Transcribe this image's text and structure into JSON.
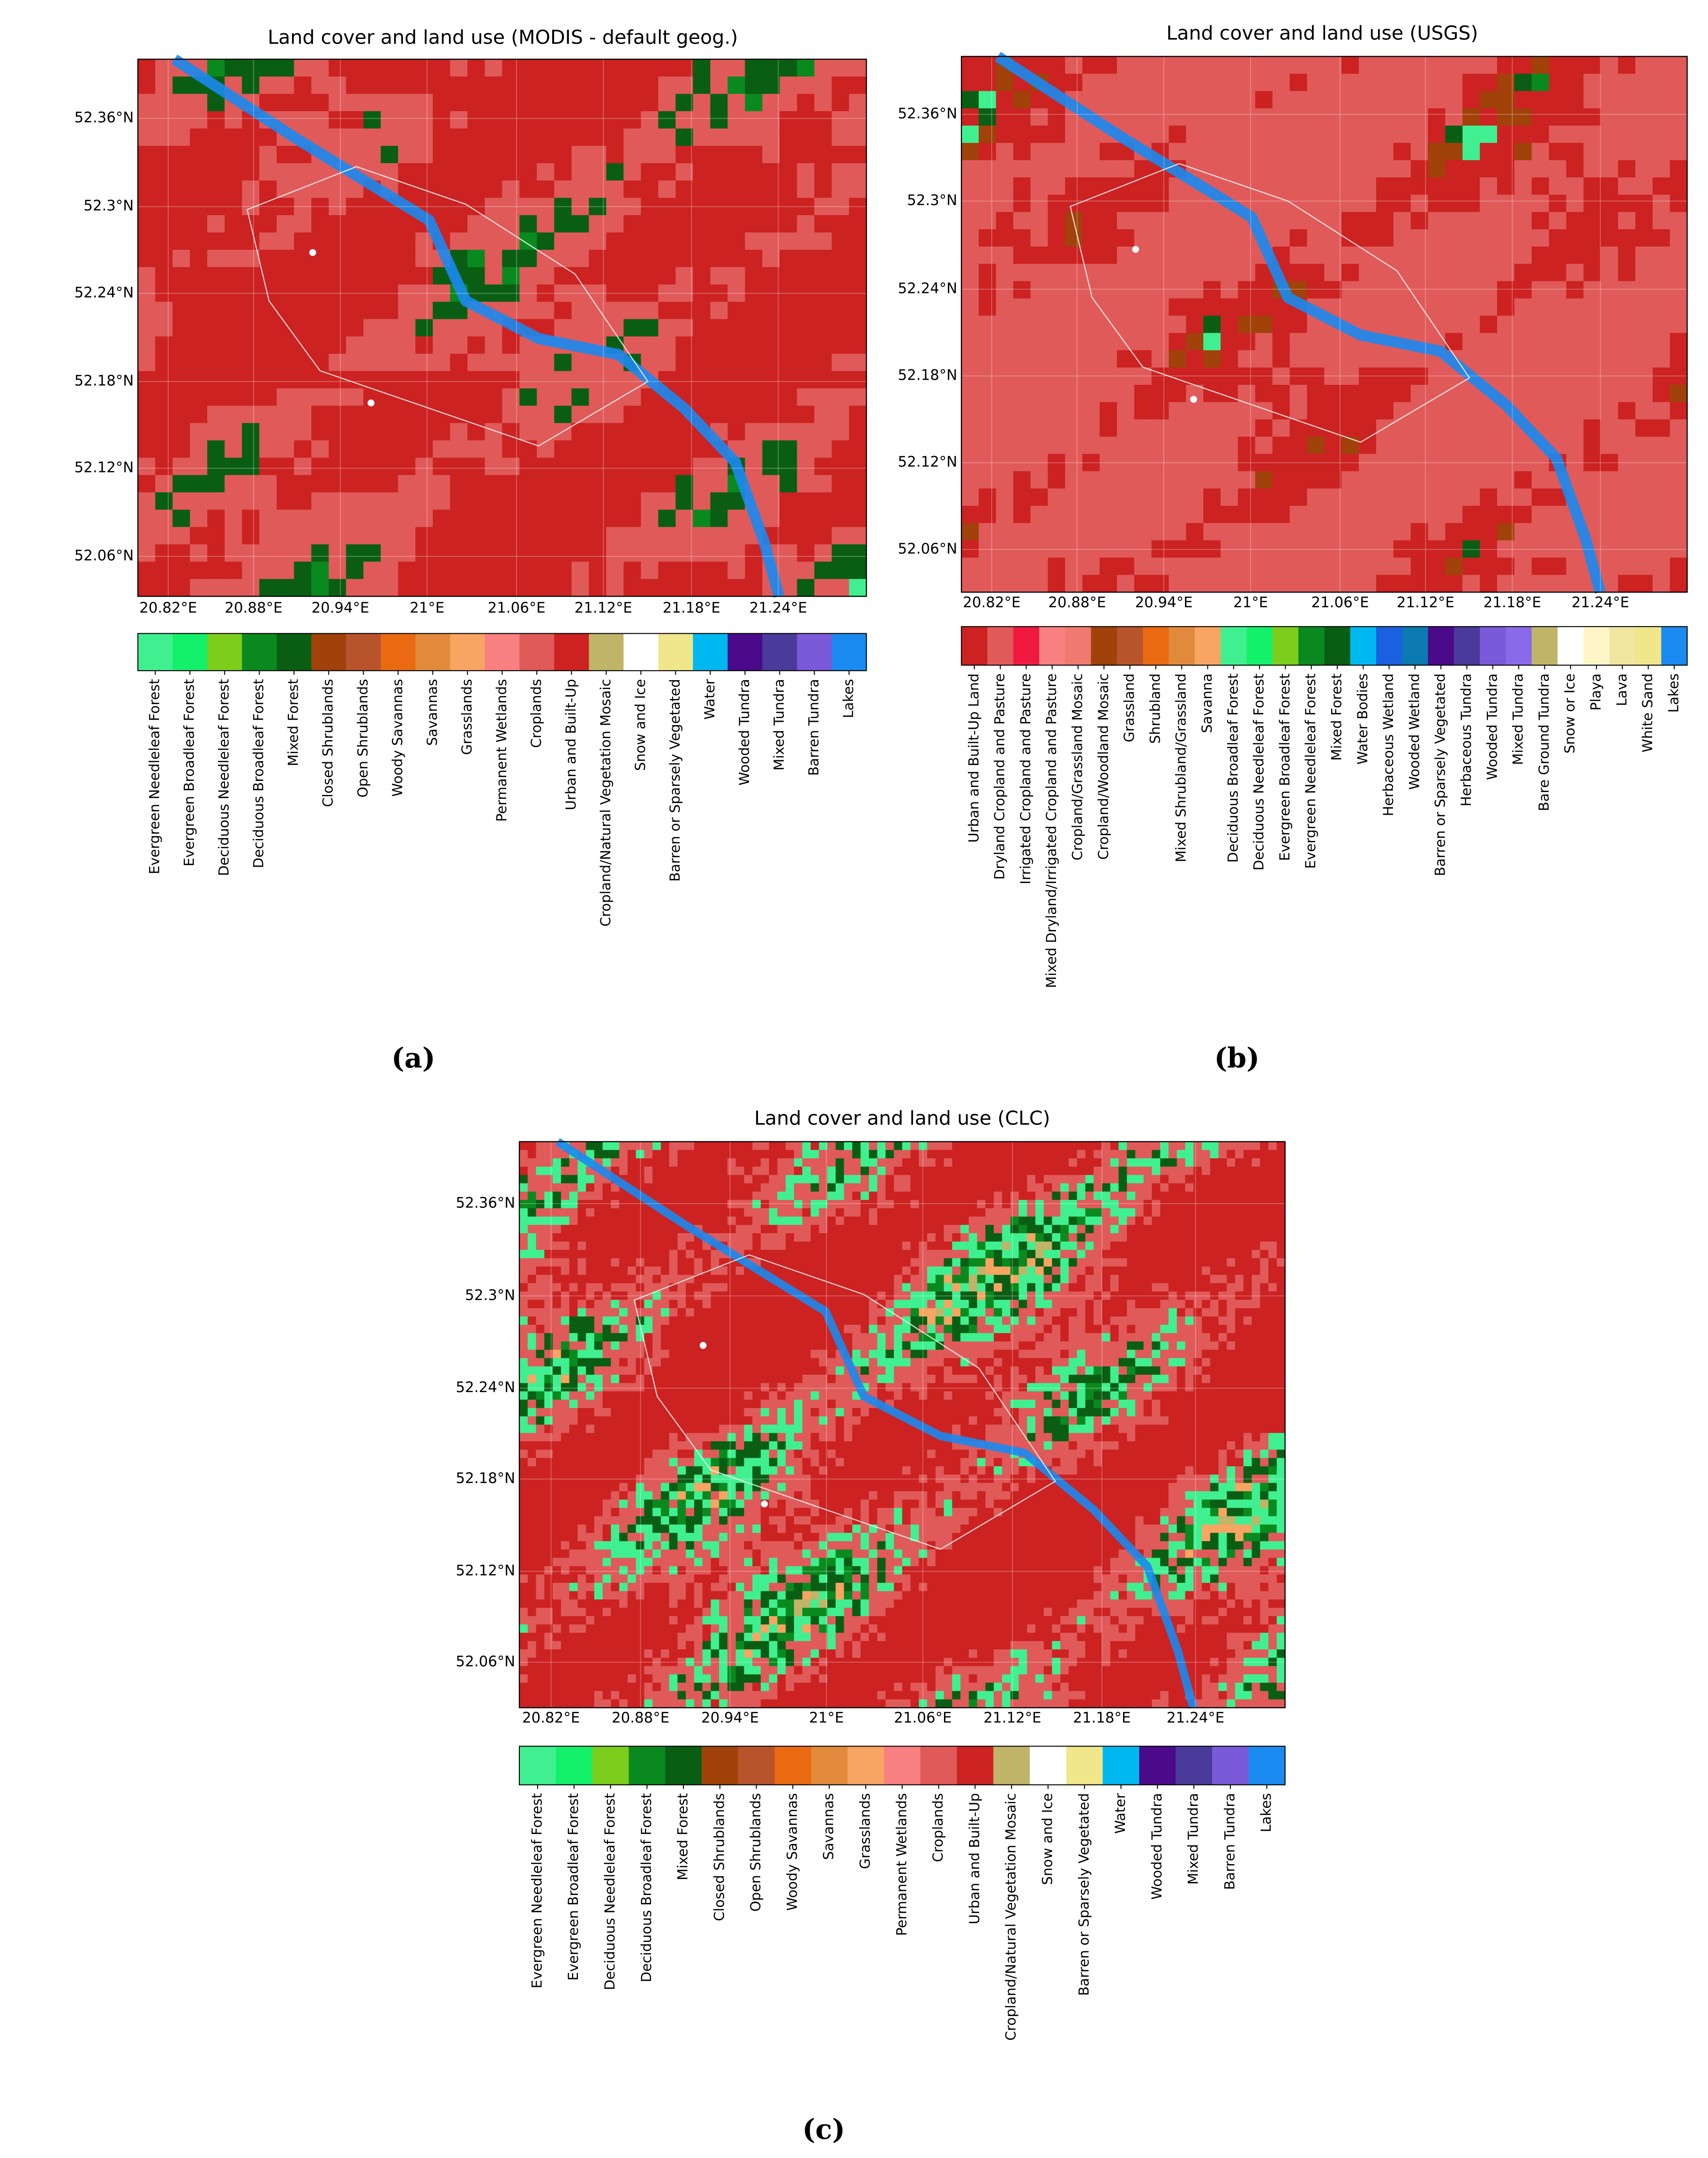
{
  "panels": [
    {
      "label": "(a)",
      "title": "Land cover and land use (MODIS - default geog.)",
      "lat_ticks": [
        "52.36°N",
        "52.3°N",
        "52.24°N",
        "52.18°N",
        "52.12°N",
        "52.06°N"
      ],
      "lon_ticks": [
        "20.82°E",
        "20.88°E",
        "20.94°E",
        "21°E",
        "21.06°E",
        "21.12°E",
        "21.18°E",
        "21.24°E"
      ],
      "legend": [
        {
          "name": "Evergreen Needleleaf Forest",
          "color": "#40f090"
        },
        {
          "name": "Evergreen Broadleaf Forest",
          "color": "#14f06a"
        },
        {
          "name": "Deciduous Needleleaf Forest",
          "color": "#7ccd1c"
        },
        {
          "name": "Deciduous Broadleaf Forest",
          "color": "#0a8a1e"
        },
        {
          "name": "Mixed Forest",
          "color": "#0a5e14"
        },
        {
          "name": "Closed Shrublands",
          "color": "#a0420a"
        },
        {
          "name": "Open Shrublands",
          "color": "#b8542c"
        },
        {
          "name": "Woody Savannas",
          "color": "#ea6a12"
        },
        {
          "name": "Savannas",
          "color": "#e28a3c"
        },
        {
          "name": "Grasslands",
          "color": "#f8a462"
        },
        {
          "name": "Permanent Wetlands",
          "color": "#f88080"
        },
        {
          "name": "Croplands",
          "color": "#e05a5a"
        },
        {
          "name": "Urban and Built-Up",
          "color": "#cc2222"
        },
        {
          "name": "Cropland/Natural Vegetation Mosaic",
          "color": "#c0b468"
        },
        {
          "name": "Snow and Ice",
          "color": "#ffffff"
        },
        {
          "name": "Barren or Sparsely Vegetated",
          "color": "#f0e68a"
        },
        {
          "name": "Water",
          "color": "#00b8f0"
        },
        {
          "name": "Wooded Tundra",
          "color": "#4a0a8a"
        },
        {
          "name": "Mixed Tundra",
          "color": "#4a3a9a"
        },
        {
          "name": "Barren Tundra",
          "color": "#7a5ad8"
        },
        {
          "name": "Lakes",
          "color": "#1a8af0"
        }
      ]
    },
    {
      "label": "(b)",
      "title": "Land cover and land use (USGS)",
      "lat_ticks": [
        "52.36°N",
        "52.3°N",
        "52.24°N",
        "52.18°N",
        "52.12°N",
        "52.06°N"
      ],
      "lon_ticks": [
        "20.82°E",
        "20.88°E",
        "20.94°E",
        "21°E",
        "21.06°E",
        "21.12°E",
        "21.18°E",
        "21.24°E"
      ],
      "legend": [
        {
          "name": "Urban and Built-Up Land",
          "color": "#cc2222"
        },
        {
          "name": "Dryland Cropland and Pasture",
          "color": "#e05a5a"
        },
        {
          "name": "Irrigated Cropland and Pasture",
          "color": "#f01a40"
        },
        {
          "name": "Mixed Dryland/Irrigated Cropland and Pasture",
          "color": "#f88080"
        },
        {
          "name": "Cropland/Grassland Mosaic",
          "color": "#f07a70"
        },
        {
          "name": "Cropland/Woodland Mosaic",
          "color": "#a0420a"
        },
        {
          "name": "Grassland",
          "color": "#b8542c"
        },
        {
          "name": "Shrubland",
          "color": "#ea6a12"
        },
        {
          "name": "Mixed Shrubland/Grassland",
          "color": "#e28a3c"
        },
        {
          "name": "Savanna",
          "color": "#f8a462"
        },
        {
          "name": "Deciduous Broadleaf Forest",
          "color": "#40f090"
        },
        {
          "name": "Deciduous Needleleaf Forest",
          "color": "#14f06a"
        },
        {
          "name": "Evergreen Broadleaf Forest",
          "color": "#7ccd1c"
        },
        {
          "name": "Evergreen Needleleaf Forest",
          "color": "#0a8a1e"
        },
        {
          "name": "Mixed Forest",
          "color": "#0a5e14"
        },
        {
          "name": "Water Bodies",
          "color": "#00b8f0"
        },
        {
          "name": "Herbaceous Wetland",
          "color": "#1a60e0"
        },
        {
          "name": "Wooded Wetland",
          "color": "#0a7ab0"
        },
        {
          "name": "Barren or Sparsely Vegetated",
          "color": "#4a0a8a"
        },
        {
          "name": "Herbaceous Tundra",
          "color": "#4a3a9a"
        },
        {
          "name": "Wooded Tundra",
          "color": "#7a5ad8"
        },
        {
          "name": "Mixed Tundra",
          "color": "#8a6ae8"
        },
        {
          "name": "Bare Ground Tundra",
          "color": "#c0b468"
        },
        {
          "name": "Snow or Ice",
          "color": "#ffffff"
        },
        {
          "name": "Playa",
          "color": "#fff6c8"
        },
        {
          "name": "Lava",
          "color": "#f0e6a0"
        },
        {
          "name": "White Sand",
          "color": "#f0e68a"
        },
        {
          "name": "Lakes",
          "color": "#1a8af0"
        }
      ]
    },
    {
      "label": "(c)",
      "title": "Land cover and land use (CLC)",
      "lat_ticks": [
        "52.36°N",
        "52.3°N",
        "52.24°N",
        "52.18°N",
        "52.12°N",
        "52.06°N"
      ],
      "lon_ticks": [
        "20.82°E",
        "20.88°E",
        "20.94°E",
        "21°E",
        "21.06°E",
        "21.12°E",
        "21.18°E",
        "21.24°E"
      ],
      "legend": [
        {
          "name": "Evergreen Needleleaf Forest",
          "color": "#40f090"
        },
        {
          "name": "Evergreen Broadleaf Forest",
          "color": "#14f06a"
        },
        {
          "name": "Deciduous Needleleaf Forest",
          "color": "#7ccd1c"
        },
        {
          "name": "Deciduous Broadleaf Forest",
          "color": "#0a8a1e"
        },
        {
          "name": "Mixed Forest",
          "color": "#0a5e14"
        },
        {
          "name": "Closed Shrublands",
          "color": "#a0420a"
        },
        {
          "name": "Open Shrublands",
          "color": "#b8542c"
        },
        {
          "name": "Woody Savannas",
          "color": "#ea6a12"
        },
        {
          "name": "Savannas",
          "color": "#e28a3c"
        },
        {
          "name": "Grasslands",
          "color": "#f8a462"
        },
        {
          "name": "Permanent Wetlands",
          "color": "#f88080"
        },
        {
          "name": "Croplands",
          "color": "#e05a5a"
        },
        {
          "name": "Urban and Built-Up",
          "color": "#cc2222"
        },
        {
          "name": "Cropland/Natural Vegetation Mosaic",
          "color": "#c0b468"
        },
        {
          "name": "Snow and Ice",
          "color": "#ffffff"
        },
        {
          "name": "Barren or Sparsely Vegetated",
          "color": "#f0e68a"
        },
        {
          "name": "Water",
          "color": "#00b8f0"
        },
        {
          "name": "Wooded Tundra",
          "color": "#4a0a8a"
        },
        {
          "name": "Mixed Tundra",
          "color": "#4a3a9a"
        },
        {
          "name": "Barren Tundra",
          "color": "#7a5ad8"
        },
        {
          "name": "Lakes",
          "color": "#1a8af0"
        }
      ]
    }
  ]
}
